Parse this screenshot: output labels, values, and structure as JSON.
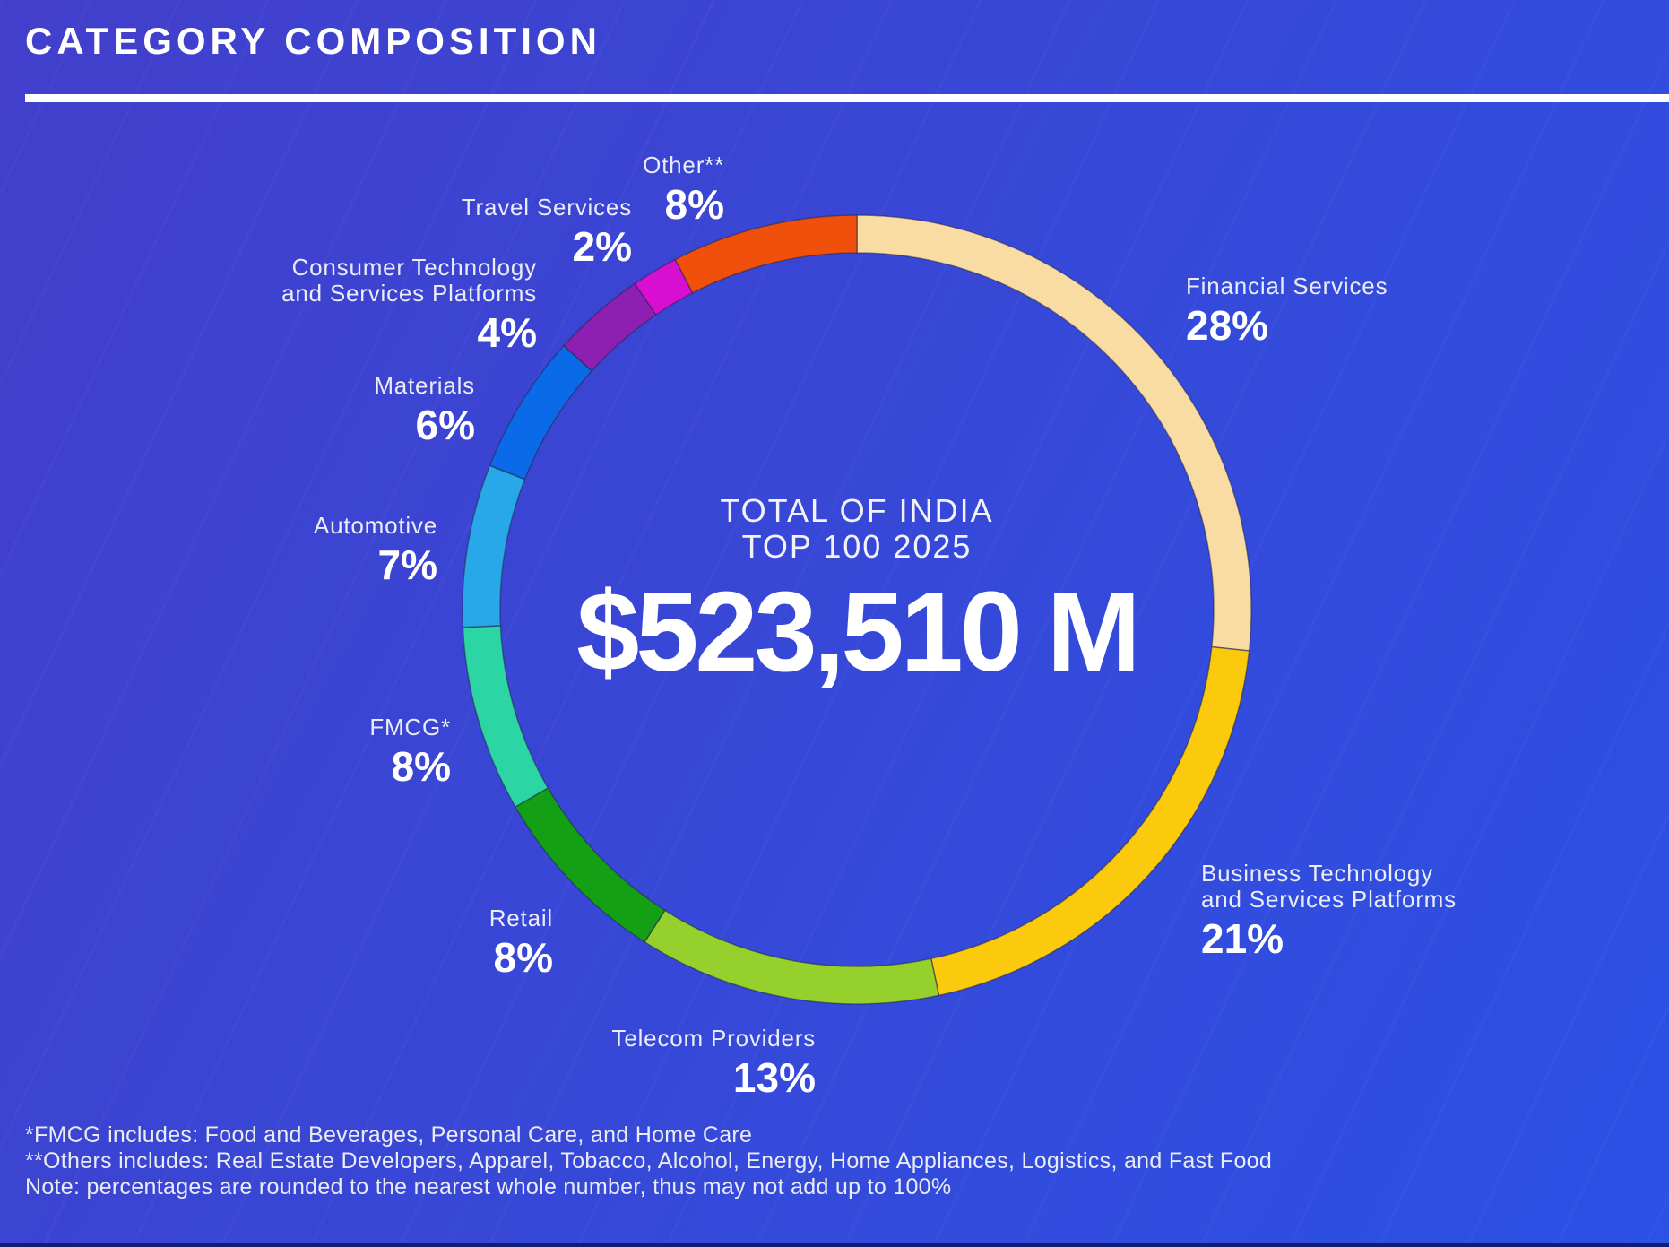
{
  "header": {
    "title": "CATEGORY COMPOSITION"
  },
  "chart_data": {
    "type": "pie",
    "subtype": "donut",
    "title": "CATEGORY COMPOSITION",
    "center_label": {
      "line1": "TOTAL OF INDIA",
      "line2": "TOP 100 2025",
      "total": "$523,510 M"
    },
    "start_angle_deg": 0,
    "direction": "clockwise",
    "legend_position": "around",
    "grid": false,
    "segments": [
      {
        "id": "financial-services",
        "label_lines": [
          "Financial Services"
        ],
        "value": 28,
        "display": "28%",
        "color": "#F8DCA3"
      },
      {
        "id": "business-technology",
        "label_lines": [
          "Business Technology",
          "and Services Platforms"
        ],
        "value": 21,
        "display": "21%",
        "color": "#FBCA0D"
      },
      {
        "id": "telecom-providers",
        "label_lines": [
          "Telecom Providers"
        ],
        "value": 13,
        "display": "13%",
        "color": "#95D02C"
      },
      {
        "id": "retail",
        "label_lines": [
          "Retail"
        ],
        "value": 8,
        "display": "8%",
        "color": "#13A015"
      },
      {
        "id": "fmcg",
        "label_lines": [
          "FMCG*"
        ],
        "value": 8,
        "display": "8%",
        "color": "#2BD5A4"
      },
      {
        "id": "automotive",
        "label_lines": [
          "Automotive"
        ],
        "value": 7,
        "display": "7%",
        "color": "#28A8E8"
      },
      {
        "id": "materials",
        "label_lines": [
          "Materials"
        ],
        "value": 6,
        "display": "6%",
        "color": "#0B6AE8"
      },
      {
        "id": "consumer-technology",
        "label_lines": [
          "Consumer Technology",
          "and Services Platforms"
        ],
        "value": 4,
        "display": "4%",
        "color": "#8E1FB3"
      },
      {
        "id": "travel-services",
        "label_lines": [
          "Travel Services"
        ],
        "value": 2,
        "display": "2%",
        "color": "#D80ED0"
      },
      {
        "id": "other",
        "label_lines": [
          "Other**"
        ],
        "value": 8,
        "display": "8%",
        "color": "#F0500C"
      }
    ]
  },
  "footnotes": [
    "*FMCG includes: Food and Beverages, Personal Care, and Home Care",
    "**Others includes: Real Estate Developers, Apparel, Tobacco, Alcohol, Energy, Home Appliances, Logistics, and Fast Food",
    "Note: percentages are rounded to the nearest whole number, thus may not add up to 100%"
  ],
  "colors": {
    "background_start": "#423FCB",
    "background_end": "#2B51E5",
    "title_rule": "#FFFFFF",
    "text": "#FFFFFF",
    "segment_separator": "#232850",
    "bottom_bar": "#141C70"
  }
}
